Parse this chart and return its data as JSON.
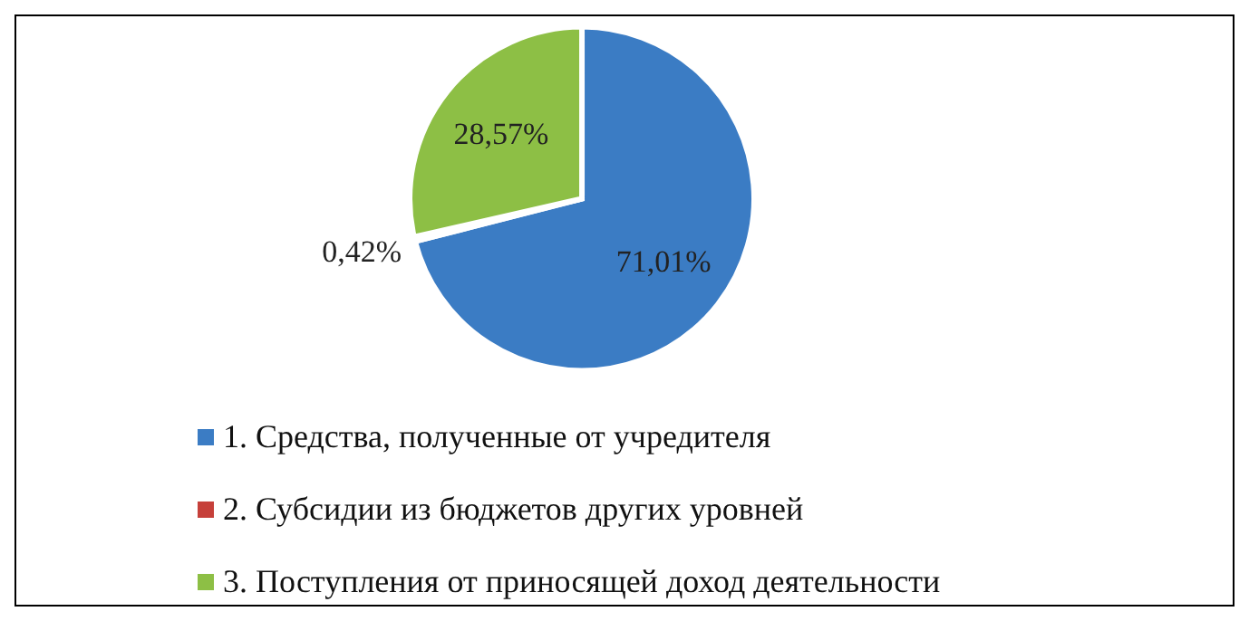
{
  "chart_data": {
    "type": "pie",
    "categories": [
      "1. Средства, полученные от учредителя",
      "2. Субсидии из бюджетов других уровней",
      "3. Поступления от приносящей доход деятельности"
    ],
    "values": [
      71.01,
      0.42,
      28.57
    ],
    "value_labels": [
      "71,01%",
      "0,42%",
      "28,57%"
    ],
    "colors": [
      "#3b7cc4",
      "#c6403a",
      "#8dbf45"
    ],
    "legend": "bottom"
  }
}
